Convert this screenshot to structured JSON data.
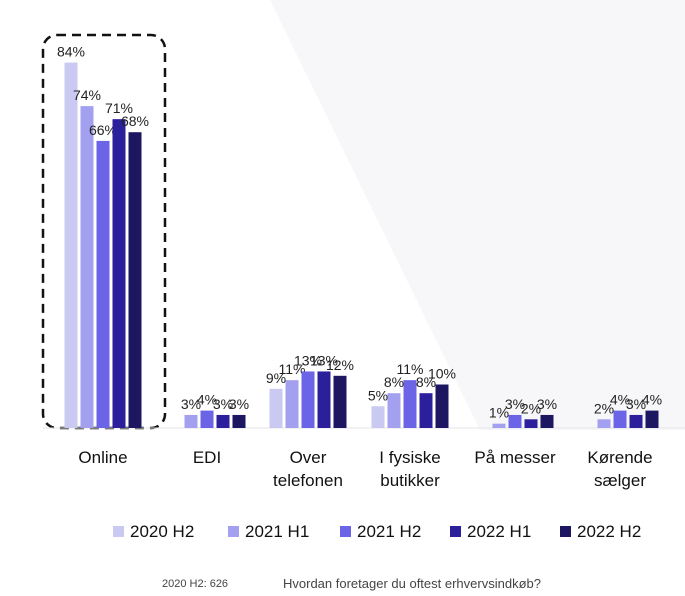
{
  "chart_data": {
    "type": "bar",
    "categories": [
      "Online",
      "EDI",
      "Over\ntelefonen",
      "I fysiske\nbutikker",
      "På messer",
      "Kørende\nsælger"
    ],
    "series": [
      {
        "name": "2020 H2",
        "color": "#c9c9f2",
        "values": [
          84,
          null,
          9,
          5,
          null,
          null
        ],
        "value_labels": [
          "84%",
          null,
          "9%",
          "5%",
          null,
          null
        ]
      },
      {
        "name": "2021 H1",
        "color": "#a3a1ef",
        "values": [
          74,
          3,
          11,
          8,
          1,
          2
        ],
        "value_labels": [
          "74%",
          "3%",
          "11%",
          "8%",
          "1%",
          "2%"
        ]
      },
      {
        "name": "2021 H2",
        "color": "#6c64e6",
        "values": [
          66,
          4,
          13,
          11,
          3,
          4
        ],
        "value_labels": [
          "66%",
          "4%",
          "13%",
          "11%",
          "3%",
          "4%"
        ]
      },
      {
        "name": "2022 H1",
        "color": "#2b1f9c",
        "values": [
          71,
          3,
          13,
          8,
          2,
          3
        ],
        "value_labels": [
          "71%",
          "3%",
          "13%",
          "8%",
          "2%",
          "3%"
        ]
      },
      {
        "name": "2022 H2",
        "color": "#1d1762",
        "values": [
          68,
          3,
          12,
          10,
          3,
          4
        ],
        "value_labels": [
          "68%",
          "3%",
          "12%",
          "10%",
          "3%",
          "4%"
        ]
      }
    ]
  },
  "footer": {
    "base": "2020 H2: 626",
    "question": "Hvordan foretager du oftest erhvervsindkøb?"
  }
}
